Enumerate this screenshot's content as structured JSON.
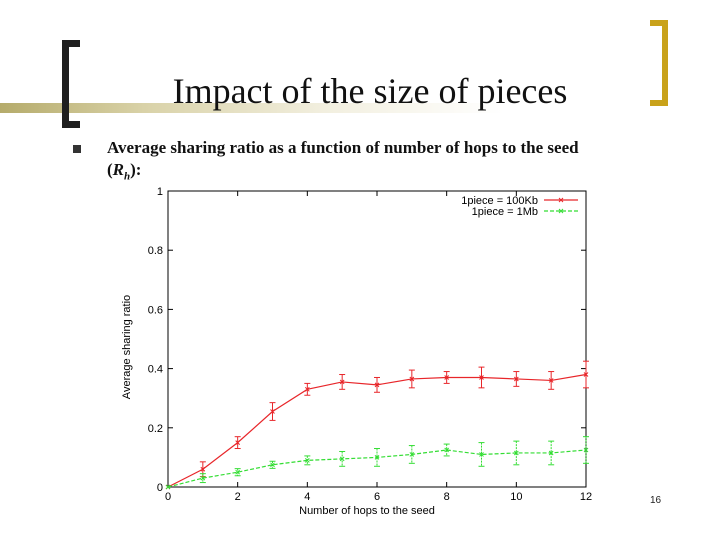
{
  "slide": {
    "title": "Impact of the size of pieces",
    "bullet_text": "Average sharing ratio as a function of number of hops  to the seed",
    "bullet_paren_open": "(",
    "bullet_rh": "Rh",
    "bullet_paren_close": "):",
    "page_number": "16"
  },
  "colors": {
    "bracket_left": "#1f1f1f",
    "bracket_right": "#c9a21a",
    "series_red": "#e8262a",
    "series_green": "#33dd33"
  },
  "chart_data": {
    "type": "line",
    "title": "",
    "xlabel": "Number of hops to the seed",
    "ylabel": "Average sharing ratio",
    "xlim": [
      0,
      12
    ],
    "ylim": [
      0,
      1
    ],
    "xticks": [
      "0",
      "2",
      "4",
      "6",
      "8",
      "10",
      "12"
    ],
    "yticks": [
      "0",
      "0.2",
      "0.4",
      "0.6",
      "0.8",
      "1"
    ],
    "legend_position": "top-right",
    "grid": false,
    "error_bars": true,
    "x": [
      0,
      1,
      2,
      3,
      4,
      5,
      6,
      7,
      8,
      9,
      10,
      11,
      12
    ],
    "series": [
      {
        "name": "1piece = 100Kb",
        "color": "#e8262a",
        "values": [
          0,
          0.06,
          0.15,
          0.255,
          0.33,
          0.355,
          0.345,
          0.365,
          0.37,
          0.37,
          0.365,
          0.36,
          0.38
        ],
        "errors": [
          0,
          0.025,
          0.02,
          0.03,
          0.02,
          0.025,
          0.025,
          0.03,
          0.02,
          0.035,
          0.025,
          0.03,
          0.045
        ]
      },
      {
        "name": "1piece = 1Mb",
        "color": "#33dd33",
        "values": [
          0,
          0.03,
          0.05,
          0.075,
          0.09,
          0.095,
          0.1,
          0.11,
          0.125,
          0.11,
          0.115,
          0.115,
          0.125
        ],
        "errors": [
          0,
          0.015,
          0.012,
          0.012,
          0.015,
          0.025,
          0.03,
          0.03,
          0.02,
          0.04,
          0.04,
          0.04,
          0.045
        ]
      }
    ]
  }
}
